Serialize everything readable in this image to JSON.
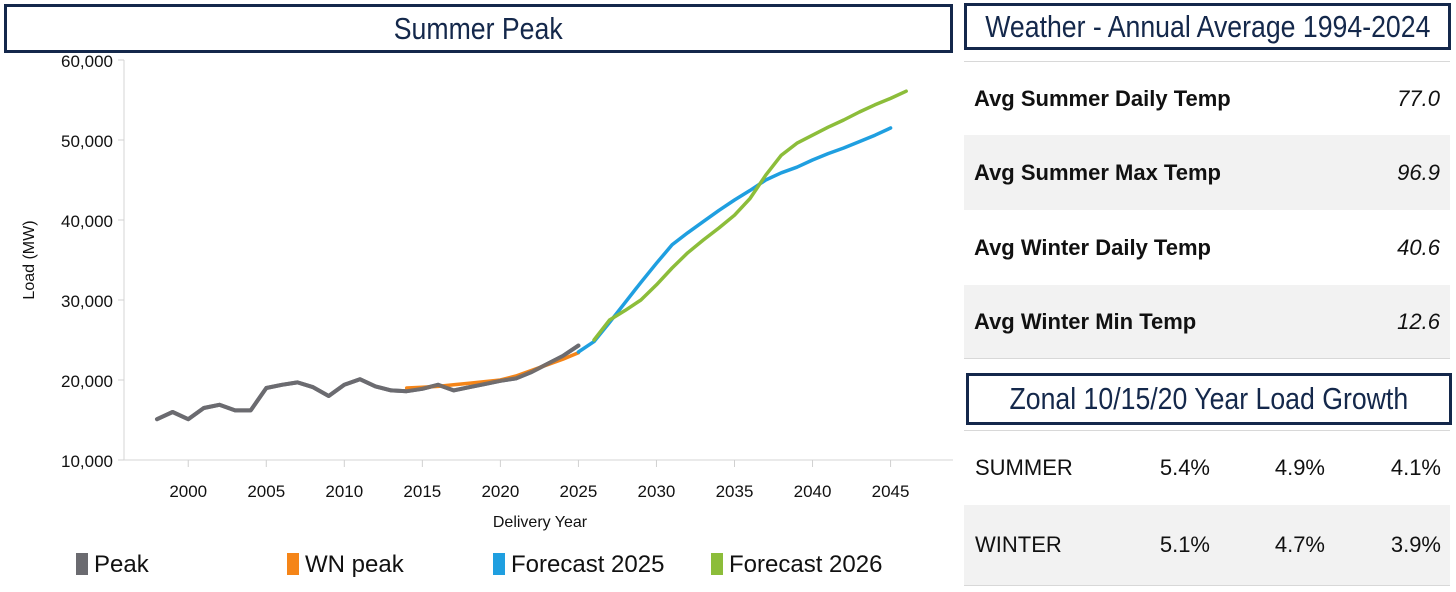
{
  "chart_data": {
    "type": "line",
    "title": "Summer Peak",
    "xlabel": "Delivery Year",
    "ylabel": "Load (MW)",
    "xlim": [
      1995.5,
      2049
    ],
    "ylim": [
      10000,
      60000
    ],
    "xticks": [
      2000,
      2005,
      2010,
      2015,
      2020,
      2025,
      2030,
      2035,
      2040,
      2045
    ],
    "yticks": [
      10000,
      20000,
      30000,
      40000,
      50000,
      60000
    ],
    "ytick_labels": [
      "10,000",
      "20,000",
      "30,000",
      "40,000",
      "50,000",
      "60,000"
    ],
    "grid": false,
    "legend_position": "bottom",
    "series": [
      {
        "name": "Peak",
        "color": "#6b6b70",
        "x": [
          1998,
          1999,
          2000,
          2001,
          2002,
          2003,
          2004,
          2005,
          2006,
          2007,
          2008,
          2009,
          2010,
          2011,
          2012,
          2013,
          2014,
          2015,
          2016,
          2017,
          2018,
          2019,
          2020,
          2021,
          2022,
          2023,
          2024,
          2025
        ],
        "y": [
          15100,
          16000,
          15100,
          16500,
          16900,
          16200,
          16200,
          19000,
          19400,
          19700,
          19100,
          18000,
          19400,
          20100,
          19200,
          18700,
          18600,
          18900,
          19400,
          18700,
          19100,
          19500,
          19900,
          20200,
          21000,
          22000,
          23000,
          24300
        ]
      },
      {
        "name": "WN peak",
        "color": "#f58518",
        "x": [
          2014,
          2015,
          2016,
          2017,
          2018,
          2019,
          2020,
          2021,
          2022,
          2023,
          2024,
          2025
        ],
        "y": [
          19000,
          19100,
          19200,
          19400,
          19600,
          19800,
          20000,
          20500,
          21200,
          21900,
          22600,
          23400
        ]
      },
      {
        "name": "Forecast 2025",
        "color": "#1f9fe0",
        "x": [
          2025,
          2026,
          2027,
          2028,
          2029,
          2030,
          2031,
          2032,
          2033,
          2034,
          2035,
          2036,
          2037,
          2038,
          2039,
          2040,
          2041,
          2042,
          2043,
          2044,
          2045
        ],
        "y": [
          23500,
          24800,
          27200,
          29700,
          32200,
          34600,
          36900,
          38400,
          39800,
          41200,
          42500,
          43700,
          45000,
          45900,
          46600,
          47500,
          48300,
          49000,
          49800,
          50600,
          51500
        ]
      },
      {
        "name": "Forecast 2026",
        "color": "#8cbd3a",
        "x": [
          2026,
          2027,
          2028,
          2029,
          2030,
          2031,
          2032,
          2033,
          2034,
          2035,
          2036,
          2037,
          2038,
          2039,
          2040,
          2041,
          2042,
          2043,
          2044,
          2045,
          2046
        ],
        "y": [
          25000,
          27500,
          28700,
          30000,
          31900,
          34000,
          35900,
          37500,
          39000,
          40600,
          42700,
          45600,
          48100,
          49600,
          50600,
          51600,
          52500,
          53500,
          54400,
          55200,
          56100
        ]
      }
    ]
  },
  "weather": {
    "title": "Weather - Annual Average 1994-2024",
    "rows": [
      {
        "label": "Avg Summer Daily Temp",
        "value": "77.0"
      },
      {
        "label": "Avg Summer Max Temp",
        "value": "96.9"
      },
      {
        "label": "Avg Winter Daily Temp",
        "value": "40.6"
      },
      {
        "label": "Avg Winter Min Temp",
        "value": "12.6"
      }
    ]
  },
  "growth": {
    "title": "Zonal 10/15/20 Year Load Growth",
    "rows": [
      {
        "label": "SUMMER",
        "values": [
          "5.4%",
          "4.9%",
          "4.1%"
        ]
      },
      {
        "label": "WINTER",
        "values": [
          "5.1%",
          "4.7%",
          "3.9%"
        ]
      }
    ]
  },
  "colors": {
    "title_border": "#14284b",
    "row_alt": "#f2f2f2"
  }
}
